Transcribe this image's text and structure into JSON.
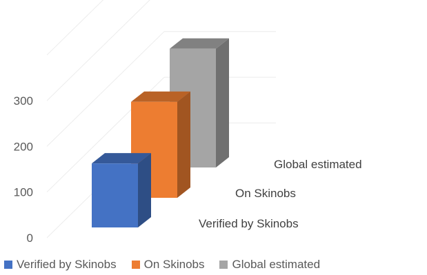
{
  "chart_data": {
    "type": "bar",
    "subtype": "3d-column",
    "categories": [
      "Verified by Skinobs",
      "On Skinobs",
      "Global estimated"
    ],
    "values": [
      140,
      210,
      260
    ],
    "colors": [
      "#4472C4",
      "#ED7D31",
      "#A5A5A5"
    ],
    "yticks": [
      0,
      100,
      200,
      300
    ],
    "ylim": [
      0,
      400
    ],
    "grid": true,
    "legend_position": "bottom",
    "title": "",
    "xlabel": "",
    "ylabel": ""
  },
  "legend": {
    "items": [
      {
        "label": "Verified by Skinobs",
        "color": "#4472C4"
      },
      {
        "label": "On Skinobs",
        "color": "#ED7D31"
      },
      {
        "label": "Global estimated",
        "color": "#A5A5A5"
      }
    ]
  }
}
